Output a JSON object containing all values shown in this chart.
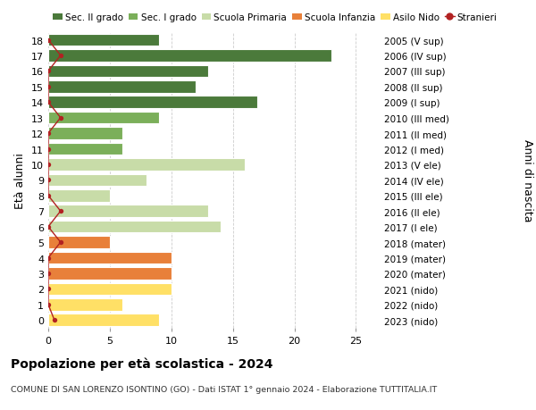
{
  "ages": [
    0,
    1,
    2,
    3,
    4,
    5,
    6,
    7,
    8,
    9,
    10,
    11,
    12,
    13,
    14,
    15,
    16,
    17,
    18
  ],
  "bar_values": [
    9,
    6,
    10,
    10,
    10,
    5,
    14,
    13,
    5,
    8,
    16,
    6,
    6,
    9,
    17,
    12,
    13,
    23,
    9
  ],
  "bar_colors": [
    "#FFE066",
    "#FFE066",
    "#FFE066",
    "#E8803A",
    "#E8803A",
    "#E8803A",
    "#C8DCA8",
    "#C8DCA8",
    "#C8DCA8",
    "#C8DCA8",
    "#C8DCA8",
    "#7BAF5A",
    "#7BAF5A",
    "#7BAF5A",
    "#4B7A3B",
    "#4B7A3B",
    "#4B7A3B",
    "#4B7A3B",
    "#4B7A3B"
  ],
  "right_labels": [
    "2023 (nido)",
    "2022 (nido)",
    "2021 (nido)",
    "2020 (mater)",
    "2019 (mater)",
    "2018 (mater)",
    "2017 (I ele)",
    "2016 (II ele)",
    "2015 (III ele)",
    "2014 (IV ele)",
    "2013 (V ele)",
    "2012 (I med)",
    "2011 (II med)",
    "2010 (III med)",
    "2009 (I sup)",
    "2008 (II sup)",
    "2007 (III sup)",
    "2006 (IV sup)",
    "2005 (V sup)"
  ],
  "legend_labels": [
    "Sec. II grado",
    "Sec. I grado",
    "Scuola Primaria",
    "Scuola Infanzia",
    "Asilo Nido",
    "Stranieri"
  ],
  "legend_colors": [
    "#4B7A3B",
    "#7BAF5A",
    "#C8DCA8",
    "#E8803A",
    "#FFE066",
    "#B22222"
  ],
  "title": "Popolazione per età scolastica - 2024",
  "subtitle": "COMUNE DI SAN LORENZO ISONTINO (GO) - Dati ISTAT 1° gennaio 2024 - Elaborazione TUTTITALIA.IT",
  "ylabel": "Età alunni",
  "ylabel2": "Anni di nascita",
  "xlabel_vals": [
    0,
    5,
    10,
    15,
    20,
    25
  ],
  "xlim": [
    0,
    27
  ],
  "background_color": "#FFFFFF",
  "stranieri_color": "#B22222",
  "stranieri_x": [
    0.5,
    0.0,
    0.0,
    0.0,
    0.0,
    1.0,
    0.0,
    1.0,
    0.0,
    0.0,
    0.0,
    0.0,
    0.0,
    1.0,
    0.0,
    0.0,
    0.0,
    1.0,
    0.0
  ]
}
